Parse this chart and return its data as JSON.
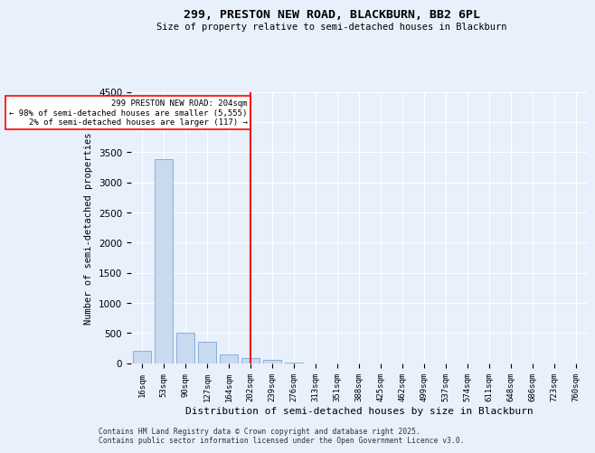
{
  "title1": "299, PRESTON NEW ROAD, BLACKBURN, BB2 6PL",
  "title2": "Size of property relative to semi-detached houses in Blackburn",
  "xlabel": "Distribution of semi-detached houses by size in Blackburn",
  "ylabel": "Number of semi-detached properties",
  "categories": [
    "16sqm",
    "53sqm",
    "90sqm",
    "127sqm",
    "164sqm",
    "202sqm",
    "239sqm",
    "276sqm",
    "313sqm",
    "351sqm",
    "388sqm",
    "425sqm",
    "462sqm",
    "499sqm",
    "537sqm",
    "574sqm",
    "611sqm",
    "648sqm",
    "686sqm",
    "723sqm",
    "760sqm"
  ],
  "values": [
    200,
    3380,
    500,
    360,
    150,
    90,
    60,
    10,
    0,
    0,
    0,
    0,
    0,
    0,
    0,
    0,
    0,
    0,
    0,
    0,
    0
  ],
  "bar_color": "#c9d9f0",
  "bar_edge_color": "#7ea6d4",
  "vline_x_index": 5,
  "vline_color": "red",
  "annotation_line1": "299 PRESTON NEW ROAD: 204sqm",
  "annotation_line2": "← 98% of semi-detached houses are smaller (5,555)",
  "annotation_line3": "2% of semi-detached houses are larger (117) →",
  "ylim": [
    0,
    4500
  ],
  "yticks": [
    0,
    500,
    1000,
    1500,
    2000,
    2500,
    3000,
    3500,
    4000,
    4500
  ],
  "footer1": "Contains HM Land Registry data © Crown copyright and database right 2025.",
  "footer2": "Contains public sector information licensed under the Open Government Licence v3.0.",
  "bg_color": "#e8f0fb",
  "plot_bg_color": "#e8f0fb"
}
